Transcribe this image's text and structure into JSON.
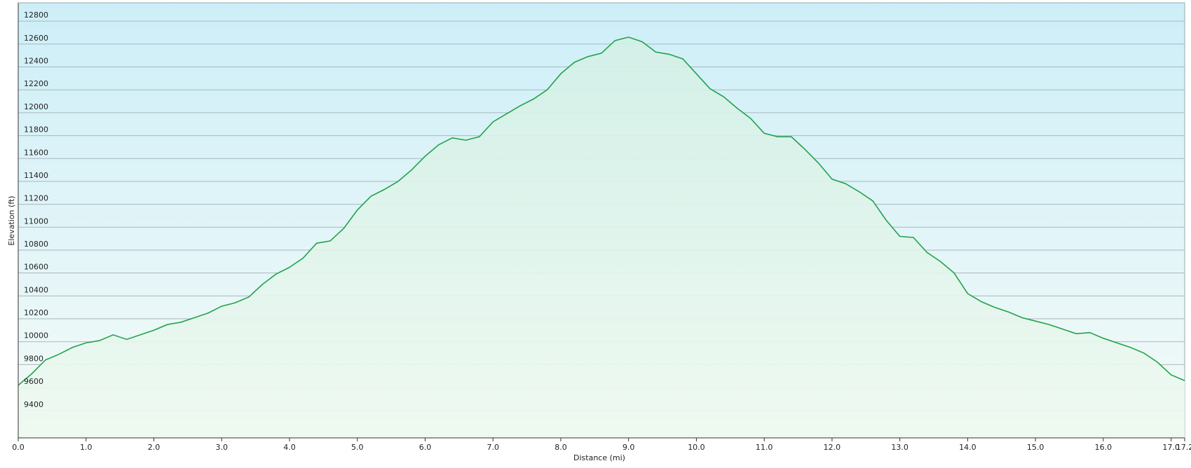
{
  "chart_data": {
    "type": "area",
    "x_label": "Distance  (mi)",
    "y_label": "Elevation (ft)",
    "color": "#22a24a",
    "x": [
      0.0,
      0.2,
      0.4,
      0.6,
      0.8,
      1.0,
      1.2,
      1.4,
      1.6,
      1.8,
      2.0,
      2.2,
      2.4,
      2.6,
      2.8,
      3.0,
      3.2,
      3.4,
      3.6,
      3.8,
      4.0,
      4.2,
      4.4,
      4.6,
      4.8,
      5.0,
      5.2,
      5.4,
      5.6,
      5.8,
      6.0,
      6.2,
      6.4,
      6.6,
      6.8,
      7.0,
      7.2,
      7.4,
      7.6,
      7.8,
      8.0,
      8.2,
      8.4,
      8.6,
      8.8,
      9.0,
      9.2,
      9.4,
      9.6,
      9.8,
      10.0,
      10.2,
      10.4,
      10.6,
      10.8,
      11.0,
      11.2,
      11.4,
      11.6,
      11.8,
      12.0,
      12.2,
      12.4,
      12.6,
      12.8,
      13.0,
      13.2,
      13.4,
      13.6,
      13.8,
      14.0,
      14.2,
      14.4,
      14.6,
      14.8,
      15.0,
      15.2,
      15.4,
      15.6,
      15.8,
      16.0,
      16.2,
      16.4,
      16.6,
      16.8,
      17.0,
      17.2
    ],
    "values": [
      9620,
      9720,
      9840,
      9890,
      9950,
      9990,
      10010,
      10060,
      10020,
      10060,
      10100,
      10150,
      10170,
      10210,
      10250,
      10310,
      10340,
      10390,
      10500,
      10590,
      10650,
      10730,
      10860,
      10880,
      10990,
      11150,
      11270,
      11330,
      11400,
      11500,
      11620,
      11720,
      11780,
      11760,
      11790,
      11920,
      11990,
      12060,
      12120,
      12200,
      12340,
      12440,
      12490,
      12520,
      12630,
      12660,
      12620,
      12530,
      12510,
      12470,
      12340,
      12210,
      12140,
      12040,
      11950,
      11820,
      11790,
      11790,
      11680,
      11560,
      11420,
      11380,
      11310,
      11230,
      11060,
      10920,
      10910,
      10780,
      10700,
      10600,
      10420,
      10350,
      10300,
      10260,
      10210,
      10180,
      10150,
      10110,
      10070,
      10080,
      10030,
      9990,
      9950,
      9900,
      9820,
      9710,
      9660
    ],
    "xlim": [
      0,
      17.2
    ],
    "ylim": [
      9160,
      12960
    ],
    "xticks": [
      {
        "value": 0,
        "label": "0.0"
      },
      {
        "value": 1,
        "label": "1.0"
      },
      {
        "value": 2,
        "label": "2.0"
      },
      {
        "value": 3,
        "label": "3.0"
      },
      {
        "value": 4,
        "label": "4.0"
      },
      {
        "value": 5,
        "label": "5.0"
      },
      {
        "value": 6,
        "label": "6.0"
      },
      {
        "value": 7,
        "label": "7.0"
      },
      {
        "value": 8,
        "label": "8.0"
      },
      {
        "value": 9,
        "label": "9.0"
      },
      {
        "value": 10,
        "label": "10.0"
      },
      {
        "value": 11,
        "label": "11.0"
      },
      {
        "value": 12,
        "label": "12.0"
      },
      {
        "value": 13,
        "label": "13.0"
      },
      {
        "value": 14,
        "label": "14.0"
      },
      {
        "value": 15,
        "label": "15.0"
      },
      {
        "value": 16,
        "label": "16.0"
      },
      {
        "value": 17,
        "label": "17.0"
      },
      17.2
    ],
    "yticks": [
      9400,
      9600,
      9800,
      10000,
      10200,
      10400,
      10600,
      10800,
      11000,
      11200,
      11400,
      11600,
      11800,
      12000,
      12200,
      12400,
      12600,
      12800
    ],
    "grid": true
  }
}
